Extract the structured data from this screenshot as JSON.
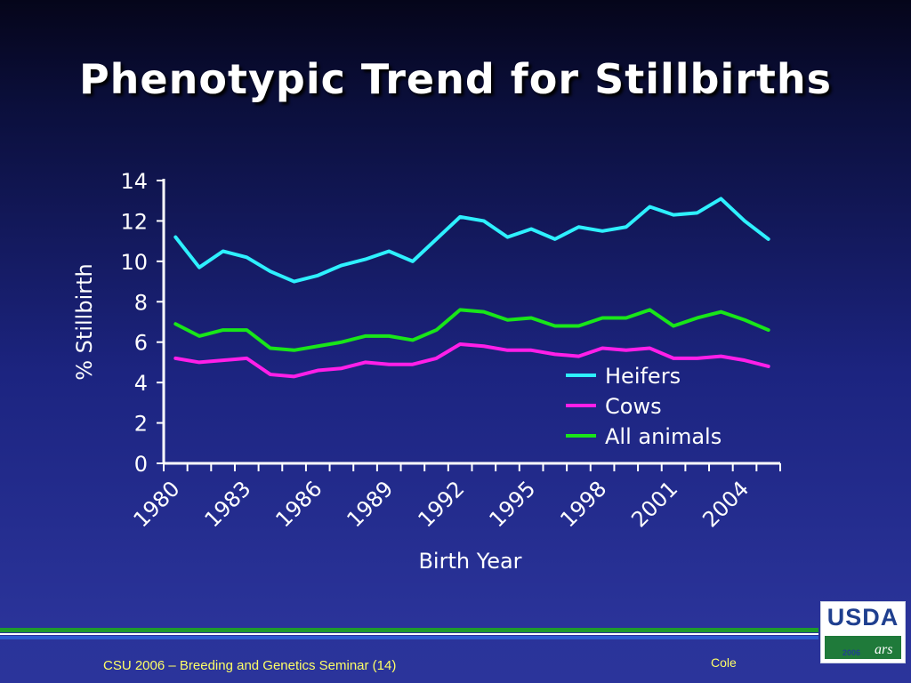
{
  "slide": {
    "title": "Phenotypic Trend for Stillbirths",
    "footer_text": "CSU 2006 – Breeding and Genetics Seminar (14)",
    "footer_author": "Cole",
    "logo_text": "USDA",
    "logo_year": "2006",
    "logo_ars": "ars"
  },
  "colors": {
    "heifers": "#2ef0ff",
    "cows": "#ff1fe8",
    "all_animals": "#19e619",
    "axis": "#ffffff",
    "footer_text": "#ffff66"
  },
  "chart_data": {
    "type": "line",
    "xlabel": "Birth Year",
    "ylabel": "% Stillbirth",
    "ylim": [
      0,
      14
    ],
    "yticks": [
      "0",
      "2",
      "4",
      "6",
      "8",
      "10",
      "12",
      "14"
    ],
    "x": [
      1980,
      1981,
      1982,
      1983,
      1984,
      1985,
      1986,
      1987,
      1988,
      1989,
      1990,
      1991,
      1992,
      1993,
      1994,
      1995,
      1996,
      1997,
      1998,
      1999,
      2000,
      2001,
      2002,
      2003,
      2004,
      2005
    ],
    "x_tick_labels": [
      "1980",
      "1983",
      "1986",
      "1989",
      "1992",
      "1995",
      "1998",
      "2001",
      "2004"
    ],
    "legend_position": "right",
    "series": [
      {
        "name": "Heifers",
        "color": "#2ef0ff",
        "values": [
          11.2,
          9.7,
          10.5,
          10.2,
          9.5,
          9.0,
          9.3,
          9.8,
          10.1,
          10.5,
          10.0,
          11.1,
          12.2,
          12.0,
          11.2,
          11.6,
          11.1,
          11.7,
          11.5,
          11.7,
          12.7,
          12.3,
          12.4,
          13.1,
          12.0,
          11.1
        ]
      },
      {
        "name": "Cows",
        "color": "#ff1fe8",
        "values": [
          5.2,
          5.0,
          5.1,
          5.2,
          4.4,
          4.3,
          4.6,
          4.7,
          5.0,
          4.9,
          4.9,
          5.2,
          5.9,
          5.8,
          5.6,
          5.6,
          5.4,
          5.3,
          5.7,
          5.6,
          5.7,
          5.2,
          5.2,
          5.3,
          5.1,
          4.8
        ]
      },
      {
        "name": "All animals",
        "color": "#19e619",
        "values": [
          6.9,
          6.3,
          6.6,
          6.6,
          5.7,
          5.6,
          5.8,
          6.0,
          6.3,
          6.3,
          6.1,
          6.6,
          7.6,
          7.5,
          7.1,
          7.2,
          6.8,
          6.8,
          7.2,
          7.2,
          7.6,
          6.8,
          7.2,
          7.5,
          7.1,
          6.6
        ]
      }
    ]
  }
}
